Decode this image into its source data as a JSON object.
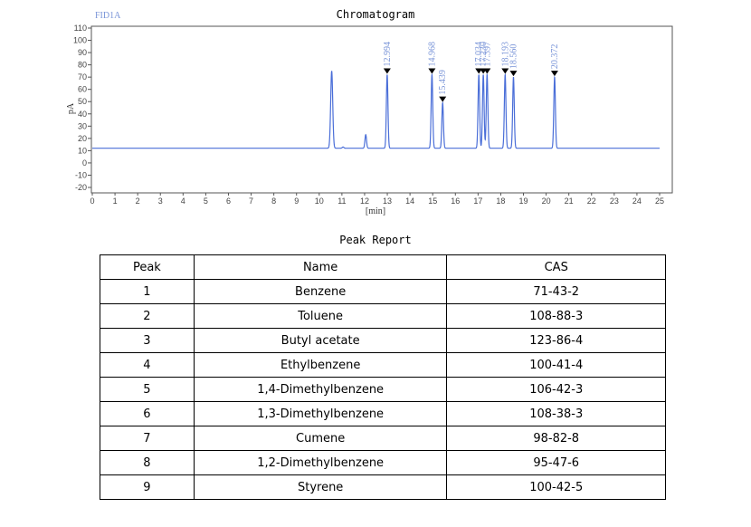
{
  "chart_data": {
    "type": "line",
    "title": "Chromatogram",
    "detector_label": "FID1A",
    "xlabel": "[min]",
    "ylabel": "pA",
    "xlim": [
      0,
      25
    ],
    "ylim": [
      -20,
      110
    ],
    "x_ticks": [
      0,
      1,
      2,
      3,
      4,
      5,
      6,
      7,
      8,
      9,
      10,
      11,
      12,
      13,
      14,
      15,
      16,
      17,
      18,
      19,
      20,
      21,
      22,
      23,
      24,
      25
    ],
    "y_ticks": [
      -20,
      -10,
      0,
      10,
      20,
      30,
      40,
      50,
      60,
      70,
      80,
      90,
      100,
      110
    ],
    "baseline": 12,
    "unlabeled_peaks": [
      {
        "time": 10.55,
        "height": 75
      },
      {
        "time": 12.05,
        "height": 23
      },
      {
        "time": 11.05,
        "height": 13
      }
    ],
    "labeled_peaks": [
      {
        "time": 12.994,
        "label": "12.994",
        "height": 72
      },
      {
        "time": 14.968,
        "label": "14.968",
        "height": 72
      },
      {
        "time": 15.439,
        "label": "15.439",
        "height": 49
      },
      {
        "time": 17.034,
        "label": "17.034",
        "height": 72
      },
      {
        "time": 17.23,
        "label": "17.230",
        "height": 72
      },
      {
        "time": 17.397,
        "label": "17.397",
        "height": 72
      },
      {
        "time": 18.193,
        "label": "18.193",
        "height": 72
      },
      {
        "time": 18.56,
        "label": "18.560",
        "height": 70
      },
      {
        "time": 20.372,
        "label": "20.372",
        "height": 70
      }
    ],
    "colors": {
      "trace": "#4a6ed8",
      "label": "#7a95d8",
      "frame": "#555555"
    }
  },
  "report": {
    "title": "Peak Report",
    "headers": [
      "Peak",
      "Name",
      "CAS"
    ],
    "rows": [
      [
        "1",
        "Benzene",
        "71-43-2"
      ],
      [
        "2",
        "Toluene",
        "108-88-3"
      ],
      [
        "3",
        "Butyl acetate",
        "123-86-4"
      ],
      [
        "4",
        "Ethylbenzene",
        "100-41-4"
      ],
      [
        "5",
        "1,4-Dimethylbenzene",
        "106-42-3"
      ],
      [
        "6",
        "1,3-Dimethylbenzene",
        "108-38-3"
      ],
      [
        "7",
        "Cumene",
        "98-82-8"
      ],
      [
        "8",
        "1,2-Dimethylbenzene",
        "95-47-6"
      ],
      [
        "9",
        "Styrene",
        "100-42-5"
      ]
    ]
  }
}
